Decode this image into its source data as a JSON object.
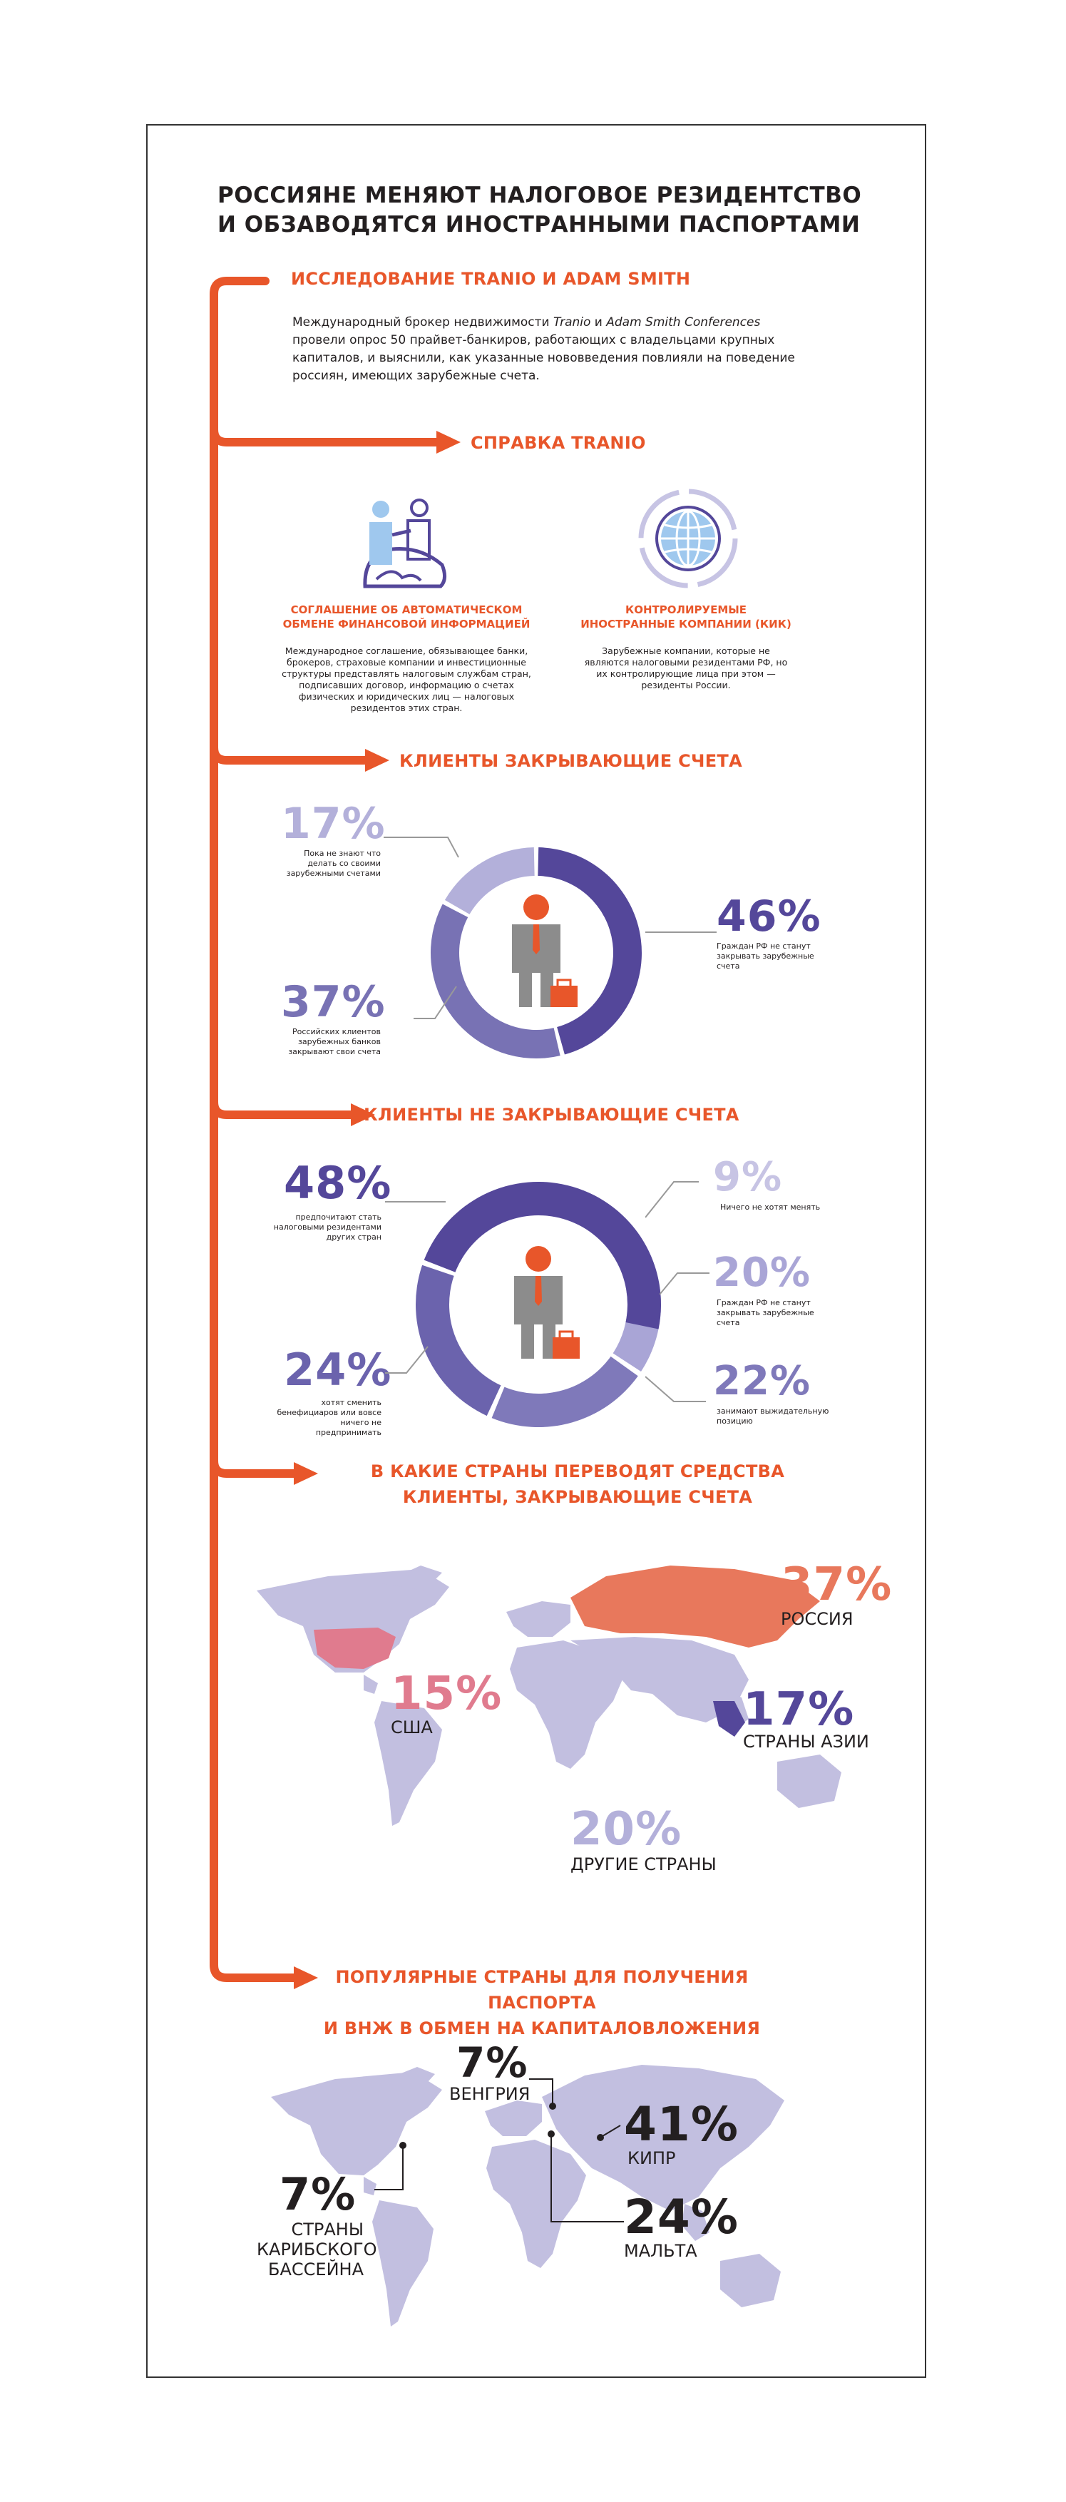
{
  "title": {
    "line1": "РОССИЯНЕ МЕНЯЮТ НАЛОГОВОЕ РЕЗИДЕНТСТВО",
    "line2": "И ОБЗАВОДЯТСЯ ИНОСТРАННЫМИ ПАСПОРТАМИ"
  },
  "intro": {
    "heading": "ИССЛЕДОВАНИЕ TRANIO И ADAM SMITH",
    "text_part1": "Международный брокер недвижимости ",
    "brand1": "Tranio",
    "text_and": " и ",
    "brand2": "Adam Smith Conferences",
    "text_part2": " провели опрос 50 прайвет-банкиров, работающих с владельцами крупных капиталов, и выяснили, как указанные нововведения повлияли на поведение россиян, имеющих зарубежные счета."
  },
  "reference": {
    "heading": "СПРАВКА TRANIO",
    "items": [
      {
        "icon": "handshake-globe-icon",
        "title": "СОГЛАШЕНИЕ ОБ АВТОМАТИЧЕСКОМ ОБМЕНЕ ФИНАНСОВОЙ ИНФОРМАЦИЕЙ",
        "text": "Международное соглашение, обязывающее банки, брокеров, страховые компании и инвестиционные структуры представлять налоговым службам стран, подписавших договор, информацию о счетах физических и юридических лиц — налоговых резидентов этих стран."
      },
      {
        "icon": "globe-arrows-icon",
        "title": "КОНТРОЛИРУЕМЫЕ ИНОСТРАННЫЕ КОМПАНИИ (КИК)",
        "text": "Зарубежные компании, которые не являются налоговыми резидентами РФ, но их контролирующие лица при этом — резиденты России."
      }
    ]
  },
  "closing": {
    "heading": "КЛИЕНТЫ ЗАКРЫВАЮЩИЕ СЧЕТА",
    "segments": [
      {
        "pct": "46%",
        "label": "Граждан РФ не станут закрывать зарубежные счета",
        "color": "#54479a"
      },
      {
        "pct": "37%",
        "label": "Российских клиентов зарубежных банков закрывают свои счета",
        "color": "#7872b4"
      },
      {
        "pct": "17%",
        "label": "Пока не знают что делать со своими зарубежными счетами",
        "color": "#b3b0da"
      }
    ]
  },
  "not_closing": {
    "heading": "КЛИЕНТЫ НЕ ЗАКРЫВАЮЩИЕ СЧЕТА",
    "segments": [
      {
        "pct": "48%",
        "label": "предпочитают стать налоговыми резидентами других стран",
        "color": "#54479a"
      },
      {
        "pct": "9%",
        "label": "Ничего не хотят менять",
        "color": "#c7c4e4"
      },
      {
        "pct": "20%",
        "label": "Граждан РФ не станут закрывать зарубежные счета",
        "color": "#a9a5d6"
      },
      {
        "pct": "22%",
        "label": "занимают выжидательную позицию",
        "color": "#7f79ba"
      },
      {
        "pct": "24%",
        "label": "хотят сменить бенефициаров или вовсе ничего не предпринимать",
        "color": "#6b63ad"
      }
    ]
  },
  "countries": {
    "heading_line1": "В КАКИЕ СТРАНЫ ПЕРЕВОДЯТ СРЕДСТВА",
    "heading_line2": "КЛИЕНТЫ, ЗАКРЫВАЮЩИЕ СЧЕТА",
    "items": [
      {
        "pct": "37%",
        "name": "РОССИЯ"
      },
      {
        "pct": "15%",
        "name": "США"
      },
      {
        "pct": "17%",
        "name": "СТРАНЫ АЗИИ"
      },
      {
        "pct": "20%",
        "name": "ДРУГИЕ СТРАНЫ"
      }
    ]
  },
  "passports": {
    "heading_line1": "ПОПУЛЯРНЫЕ СТРАНЫ ДЛЯ ПОЛУЧЕНИЯ ПАСПОРТА",
    "heading_line2": "И ВНЖ В ОБМЕН НА КАПИТАЛОВЛОЖЕНИЯ",
    "items": [
      {
        "pct": "7%",
        "name": "ВЕНГРИЯ"
      },
      {
        "pct": "41%",
        "name": "КИПР"
      },
      {
        "pct": "24%",
        "name": "МАЛЬТА"
      },
      {
        "pct": "7%",
        "name_line1": "СТРАНЫ",
        "name_line2": "КАРИБСКОГО",
        "name_line3": "БАССЕЙНА"
      }
    ]
  },
  "colors": {
    "accent": "#e8562a",
    "purple_dark": "#54479a",
    "purple_mid": "#7872b4",
    "purple_light": "#b3b0da",
    "map": "#c2bfe0",
    "person": "#8c8c8c"
  }
}
